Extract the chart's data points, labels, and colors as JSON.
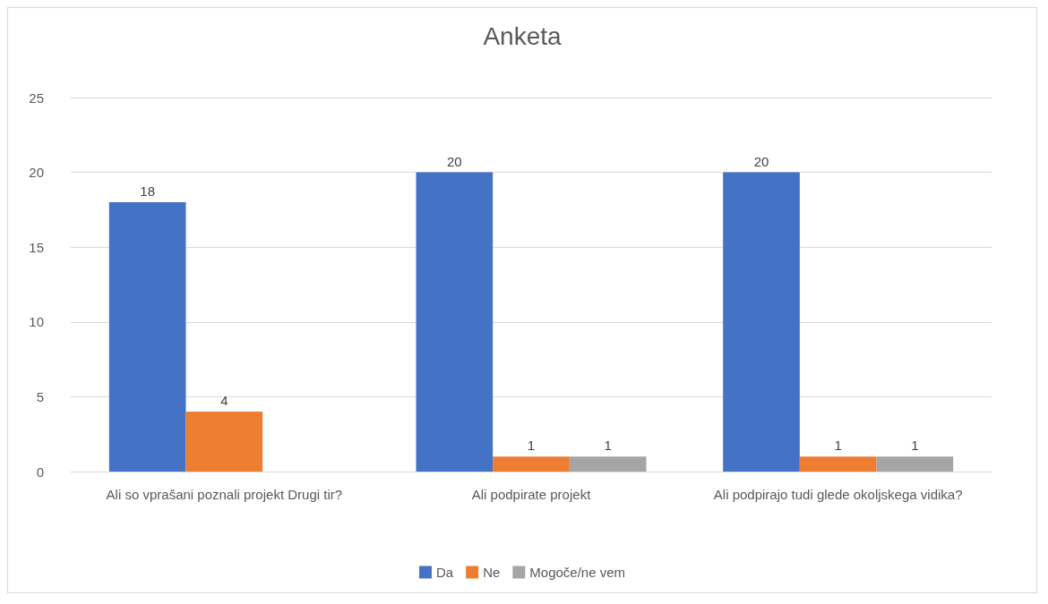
{
  "chart_data": {
    "type": "bar",
    "title": "Anketa",
    "categories": [
      "Ali so vprašani poznali projekt Drugi tir?",
      "Ali podpirate projekt",
      "Ali podpirajo tudi glede okoljskega vidika?"
    ],
    "series": [
      {
        "name": "Da",
        "color": "#4472c4",
        "values": [
          18,
          20,
          20
        ]
      },
      {
        "name": "Ne",
        "color": "#ed7d31",
        "values": [
          4,
          1,
          1
        ]
      },
      {
        "name": "Mogoče/ne vem",
        "color": "#a5a5a5",
        "values": [
          null,
          1,
          1
        ]
      }
    ],
    "ylim": [
      0,
      25
    ],
    "yticks": [
      0,
      5,
      10,
      15,
      20,
      25
    ],
    "grid": "y",
    "legend": "bottom",
    "data_labels": true
  }
}
